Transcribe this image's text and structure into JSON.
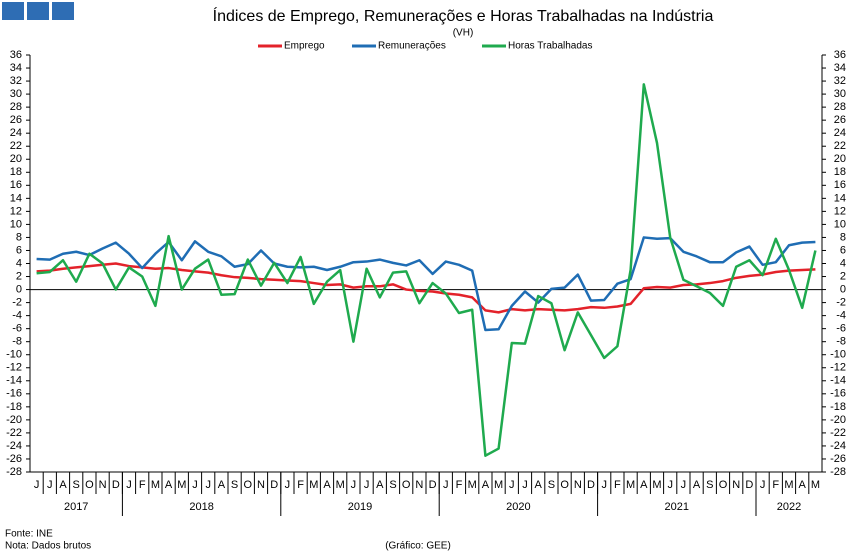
{
  "chart_data": {
    "type": "line",
    "title": "Índices de Emprego, Remunerações e Horas Trabalhadas na Indústria",
    "subtitle": "(VH)",
    "year_groups": [
      {
        "label": "2017",
        "months": [
          "J",
          "J",
          "A",
          "S",
          "O",
          "N",
          "D"
        ]
      },
      {
        "label": "2018",
        "months": [
          "J",
          "F",
          "M",
          "A",
          "M",
          "J",
          "J",
          "A",
          "S",
          "O",
          "N",
          "D"
        ]
      },
      {
        "label": "2019",
        "months": [
          "J",
          "F",
          "M",
          "A",
          "M",
          "J",
          "J",
          "A",
          "S",
          "O",
          "N",
          "D"
        ]
      },
      {
        "label": "2020",
        "months": [
          "J",
          "F",
          "M",
          "A",
          "M",
          "J",
          "J",
          "A",
          "S",
          "O",
          "N",
          "D"
        ]
      },
      {
        "label": "2021",
        "months": [
          "J",
          "F",
          "M",
          "A",
          "M",
          "J",
          "J",
          "A",
          "S",
          "O",
          "N",
          "D"
        ]
      },
      {
        "label": "2022",
        "months": [
          "J",
          "F",
          "M",
          "A",
          "M"
        ]
      }
    ],
    "series": [
      {
        "name": "Emprego",
        "color": "#e3222a",
        "values": [
          2.8,
          2.9,
          3.2,
          3.4,
          3.6,
          3.8,
          4.0,
          3.6,
          3.4,
          3.2,
          3.3,
          3.0,
          2.8,
          2.6,
          2.2,
          1.9,
          1.8,
          1.6,
          1.5,
          1.4,
          1.3,
          1.0,
          0.7,
          0.8,
          0.3,
          0.5,
          0.5,
          0.8,
          0.0,
          -0.2,
          -0.3,
          -0.6,
          -0.8,
          -1.2,
          -3.2,
          -3.5,
          -3.0,
          -3.2,
          -3.0,
          -3.1,
          -3.2,
          -3.0,
          -2.7,
          -2.8,
          -2.6,
          -2.2,
          0.2,
          0.4,
          0.3,
          0.7,
          0.8,
          1.0,
          1.3,
          1.8,
          2.1,
          2.3,
          2.7,
          2.9,
          3.0,
          3.1
        ]
      },
      {
        "name": "Remunerações",
        "color": "#1f6db4",
        "values": [
          4.7,
          4.6,
          5.5,
          5.8,
          5.3,
          6.3,
          7.2,
          5.5,
          3.3,
          5.5,
          7.3,
          4.5,
          7.4,
          5.8,
          5.1,
          3.5,
          3.9,
          6.0,
          4.0,
          3.5,
          3.4,
          3.5,
          3.0,
          3.5,
          4.2,
          4.3,
          4.6,
          4.1,
          3.7,
          4.5,
          2.4,
          4.3,
          3.8,
          2.9,
          -6.2,
          -6.1,
          -2.5,
          -0.3,
          -2.0,
          0.1,
          0.3,
          2.3,
          -1.7,
          -1.6,
          0.9,
          1.6,
          8.0,
          7.8,
          7.9,
          5.8,
          5.1,
          4.2,
          4.2,
          5.7,
          6.6,
          3.8,
          4.2,
          6.8,
          7.2,
          7.3
        ]
      },
      {
        "name": "Horas Trabalhadas",
        "color": "#1faa4e",
        "values": [
          2.5,
          2.7,
          4.5,
          1.2,
          5.5,
          4.0,
          0.0,
          3.4,
          2.0,
          -2.5,
          8.2,
          0.0,
          3.2,
          4.6,
          -0.8,
          -0.7,
          4.6,
          0.6,
          4.1,
          1.0,
          5.0,
          -2.2,
          1.2,
          3.0,
          -8.0,
          3.2,
          -1.2,
          2.6,
          2.8,
          -2.1,
          1.0,
          -0.6,
          -3.6,
          -3.1,
          -25.5,
          -24.4,
          -8.2,
          -8.3,
          -1.0,
          -2.1,
          -9.3,
          -3.5,
          -7.0,
          -10.5,
          -8.7,
          3.0,
          31.5,
          22.5,
          8.0,
          1.5,
          0.5,
          -0.5,
          -2.5,
          3.5,
          4.5,
          2.2,
          7.8,
          3.0,
          -2.8,
          6.0
        ]
      }
    ],
    "ylim": [
      -28,
      36
    ],
    "yticks": [
      -28,
      -26,
      -24,
      -22,
      -20,
      -18,
      -16,
      -14,
      -12,
      -10,
      -8,
      -6,
      -4,
      -2,
      0,
      2,
      4,
      6,
      8,
      10,
      12,
      14,
      16,
      18,
      20,
      22,
      24,
      26,
      28,
      30,
      32,
      34,
      36
    ],
    "y2lim": [
      -28,
      36
    ],
    "y2ticks": [
      -28,
      -26,
      -24,
      -22,
      -20,
      -18,
      -16,
      -14,
      -12,
      -10,
      -8,
      -6,
      -4,
      -2,
      0,
      2,
      4,
      6,
      8,
      10,
      12,
      14,
      16,
      18,
      20,
      22,
      24,
      26,
      28,
      30,
      32,
      34,
      36
    ],
    "grid": false,
    "legend": "top",
    "source": "Fonte: INE",
    "note": "Nota: Dados brutos",
    "credit": "(Gráfico: GEE)"
  }
}
